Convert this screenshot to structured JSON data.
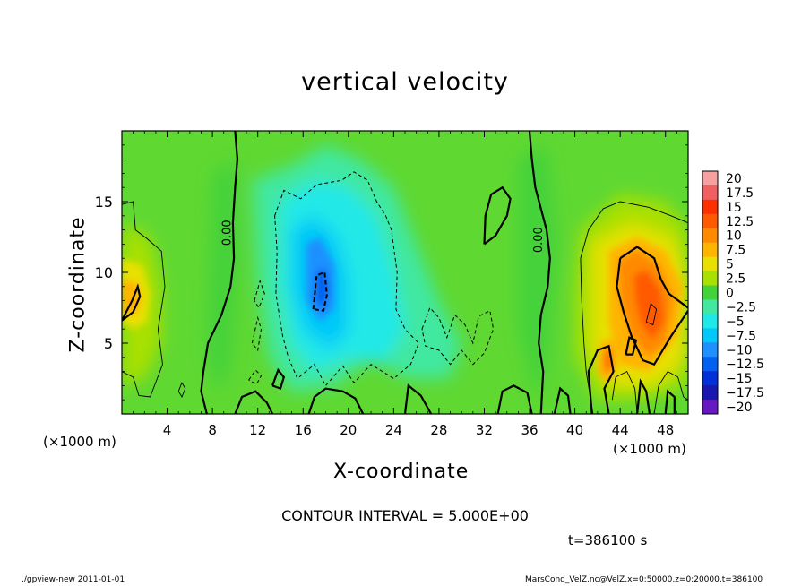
{
  "chart_data": {
    "type": "heatmap",
    "title": "vertical velocity",
    "xlabel": "X-coordinate",
    "ylabel": "Z-coordinate",
    "x_unit_label": "(×1000 m)",
    "xlim": [
      0,
      50
    ],
    "ylim": [
      0,
      20
    ],
    "x_ticks": [
      4,
      8,
      12,
      16,
      20,
      24,
      28,
      32,
      36,
      40,
      44,
      48
    ],
    "y_ticks": [
      5,
      10,
      15
    ],
    "colorbar": {
      "levels": [
        "20",
        "17.5",
        "15",
        "12.5",
        "10",
        "7.5",
        "5",
        "2.5",
        "0",
        "−2.5",
        "−5",
        "−7.5",
        "−10",
        "−12.5",
        "−15",
        "−17.5",
        "−20"
      ],
      "colors": [
        "#f7a0a0",
        "#f06060",
        "#ff3000",
        "#ff5a00",
        "#ff8a00",
        "#ffb400",
        "#e8e000",
        "#a8e000",
        "#44d23a",
        "#40e8a0",
        "#20e8e8",
        "#00c8f8",
        "#1e90ff",
        "#0060f0",
        "#0030d8",
        "#1818b0",
        "#6818c0"
      ]
    },
    "contour_labels": [
      "0.00",
      "0.00"
    ],
    "contour_interval": "CONTOUR INTERVAL = 5.000E+00",
    "time_label": "t=386100 s",
    "features": [
      {
        "kind": "updraft",
        "x": 2,
        "z": 8.5,
        "w": 9
      },
      {
        "kind": "updraft",
        "x": 46.5,
        "z": 7.5,
        "w": 13
      },
      {
        "kind": "updraft",
        "x": 43,
        "z": 3.5,
        "w": 10
      },
      {
        "kind": "downdraft",
        "x": 17.5,
        "z": 9,
        "w": -10
      },
      {
        "kind": "downdraft",
        "x": 22,
        "z": 8,
        "w": -6
      }
    ]
  },
  "footer": {
    "left": "./gpview-new   2011-01-01",
    "right": "MarsCond_VelZ.nc@VelZ,x=0:50000,z=0:20000,t=386100"
  }
}
